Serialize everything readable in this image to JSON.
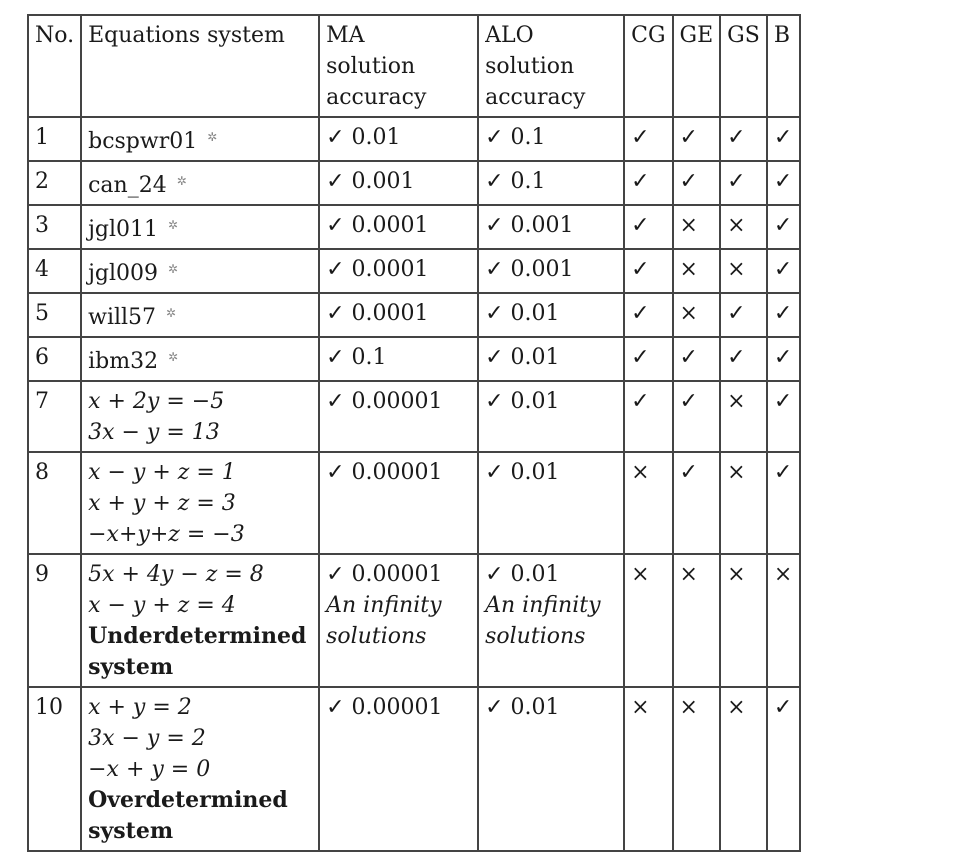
{
  "headers": {
    "no": "No.",
    "equations": "Equations system",
    "ma": [
      "MA",
      "solution",
      "accuracy"
    ],
    "alo": [
      "ALO",
      "solution",
      "accuracy"
    ],
    "cg": "CG",
    "ge": "GE",
    "gs": "GS",
    "b": "B"
  },
  "symbols": {
    "check": "✓",
    "cross": "×",
    "star": "✲"
  },
  "rows": [
    {
      "no": "1",
      "eq": [
        "bcspwr01"
      ],
      "star": true,
      "note": "",
      "ma": "✓ 0.01",
      "ma_note": [],
      "alo": "✓ 0.1",
      "alo_note": [],
      "cg": "✓",
      "ge": "✓",
      "gs": "✓",
      "b": "✓"
    },
    {
      "no": "2",
      "eq": [
        "can_24"
      ],
      "star": true,
      "note": "",
      "ma": "✓ 0.001",
      "ma_note": [],
      "alo": "✓ 0.1",
      "alo_note": [],
      "cg": "✓",
      "ge": "✓",
      "gs": "✓",
      "b": "✓"
    },
    {
      "no": "3",
      "eq": [
        "jgl011"
      ],
      "star": true,
      "note": "",
      "ma": "✓ 0.0001",
      "ma_note": [],
      "alo": "✓ 0.001",
      "alo_note": [],
      "cg": "✓",
      "ge": "×",
      "gs": "×",
      "b": "✓"
    },
    {
      "no": "4",
      "eq": [
        "jgl009"
      ],
      "star": true,
      "note": "",
      "ma": "✓ 0.0001",
      "ma_note": [],
      "alo": "✓ 0.001",
      "alo_note": [],
      "cg": "✓",
      "ge": "×",
      "gs": "×",
      "b": "✓"
    },
    {
      "no": "5",
      "eq": [
        "will57"
      ],
      "star": true,
      "note": "",
      "ma": "✓ 0.0001",
      "ma_note": [],
      "alo": "✓ 0.01",
      "alo_note": [],
      "cg": "✓",
      "ge": "×",
      "gs": "✓",
      "b": "✓"
    },
    {
      "no": "6",
      "eq": [
        "ibm32"
      ],
      "star": true,
      "note": "",
      "ma": "✓ 0.1",
      "ma_note": [],
      "alo": "✓ 0.01",
      "alo_note": [],
      "cg": "✓",
      "ge": "✓",
      "gs": "✓",
      "b": "✓"
    },
    {
      "no": "7",
      "eq": [
        "x + 2y = −5",
        "3x − y = 13"
      ],
      "star": false,
      "note": "",
      "ma": "✓ 0.00001",
      "ma_note": [],
      "alo": "✓ 0.01",
      "alo_note": [],
      "cg": "✓",
      "ge": "✓",
      "gs": "×",
      "b": "✓"
    },
    {
      "no": "8",
      "eq": [
        "x − y + z = 1",
        "x + y + z = 3",
        "−x+y+z = −3"
      ],
      "star": false,
      "note": "",
      "ma": "✓ 0.00001",
      "ma_note": [],
      "alo": "✓ 0.01",
      "alo_note": [],
      "cg": "×",
      "ge": "✓",
      "gs": "×",
      "b": "✓"
    },
    {
      "no": "9",
      "eq": [
        "5x + 4y − z = 8",
        "x − y + z = 4"
      ],
      "star": false,
      "note": "Underdetermined system",
      "ma": "✓ 0.00001",
      "ma_note": [
        "An infinity",
        "solutions"
      ],
      "alo": "✓ 0.01",
      "alo_note": [
        "An infinity",
        "solutions"
      ],
      "cg": "×",
      "ge": "×",
      "gs": "×",
      "b": "×"
    },
    {
      "no": "10",
      "eq": [
        "x + y = 2",
        "3x − y = 2",
        "−x + y = 0"
      ],
      "star": false,
      "note": "Overdetermined system",
      "ma": "✓ 0.00001",
      "ma_note": [],
      "alo": "✓ 0.01",
      "alo_note": [],
      "cg": "×",
      "ge": "×",
      "gs": "×",
      "b": "✓"
    }
  ]
}
